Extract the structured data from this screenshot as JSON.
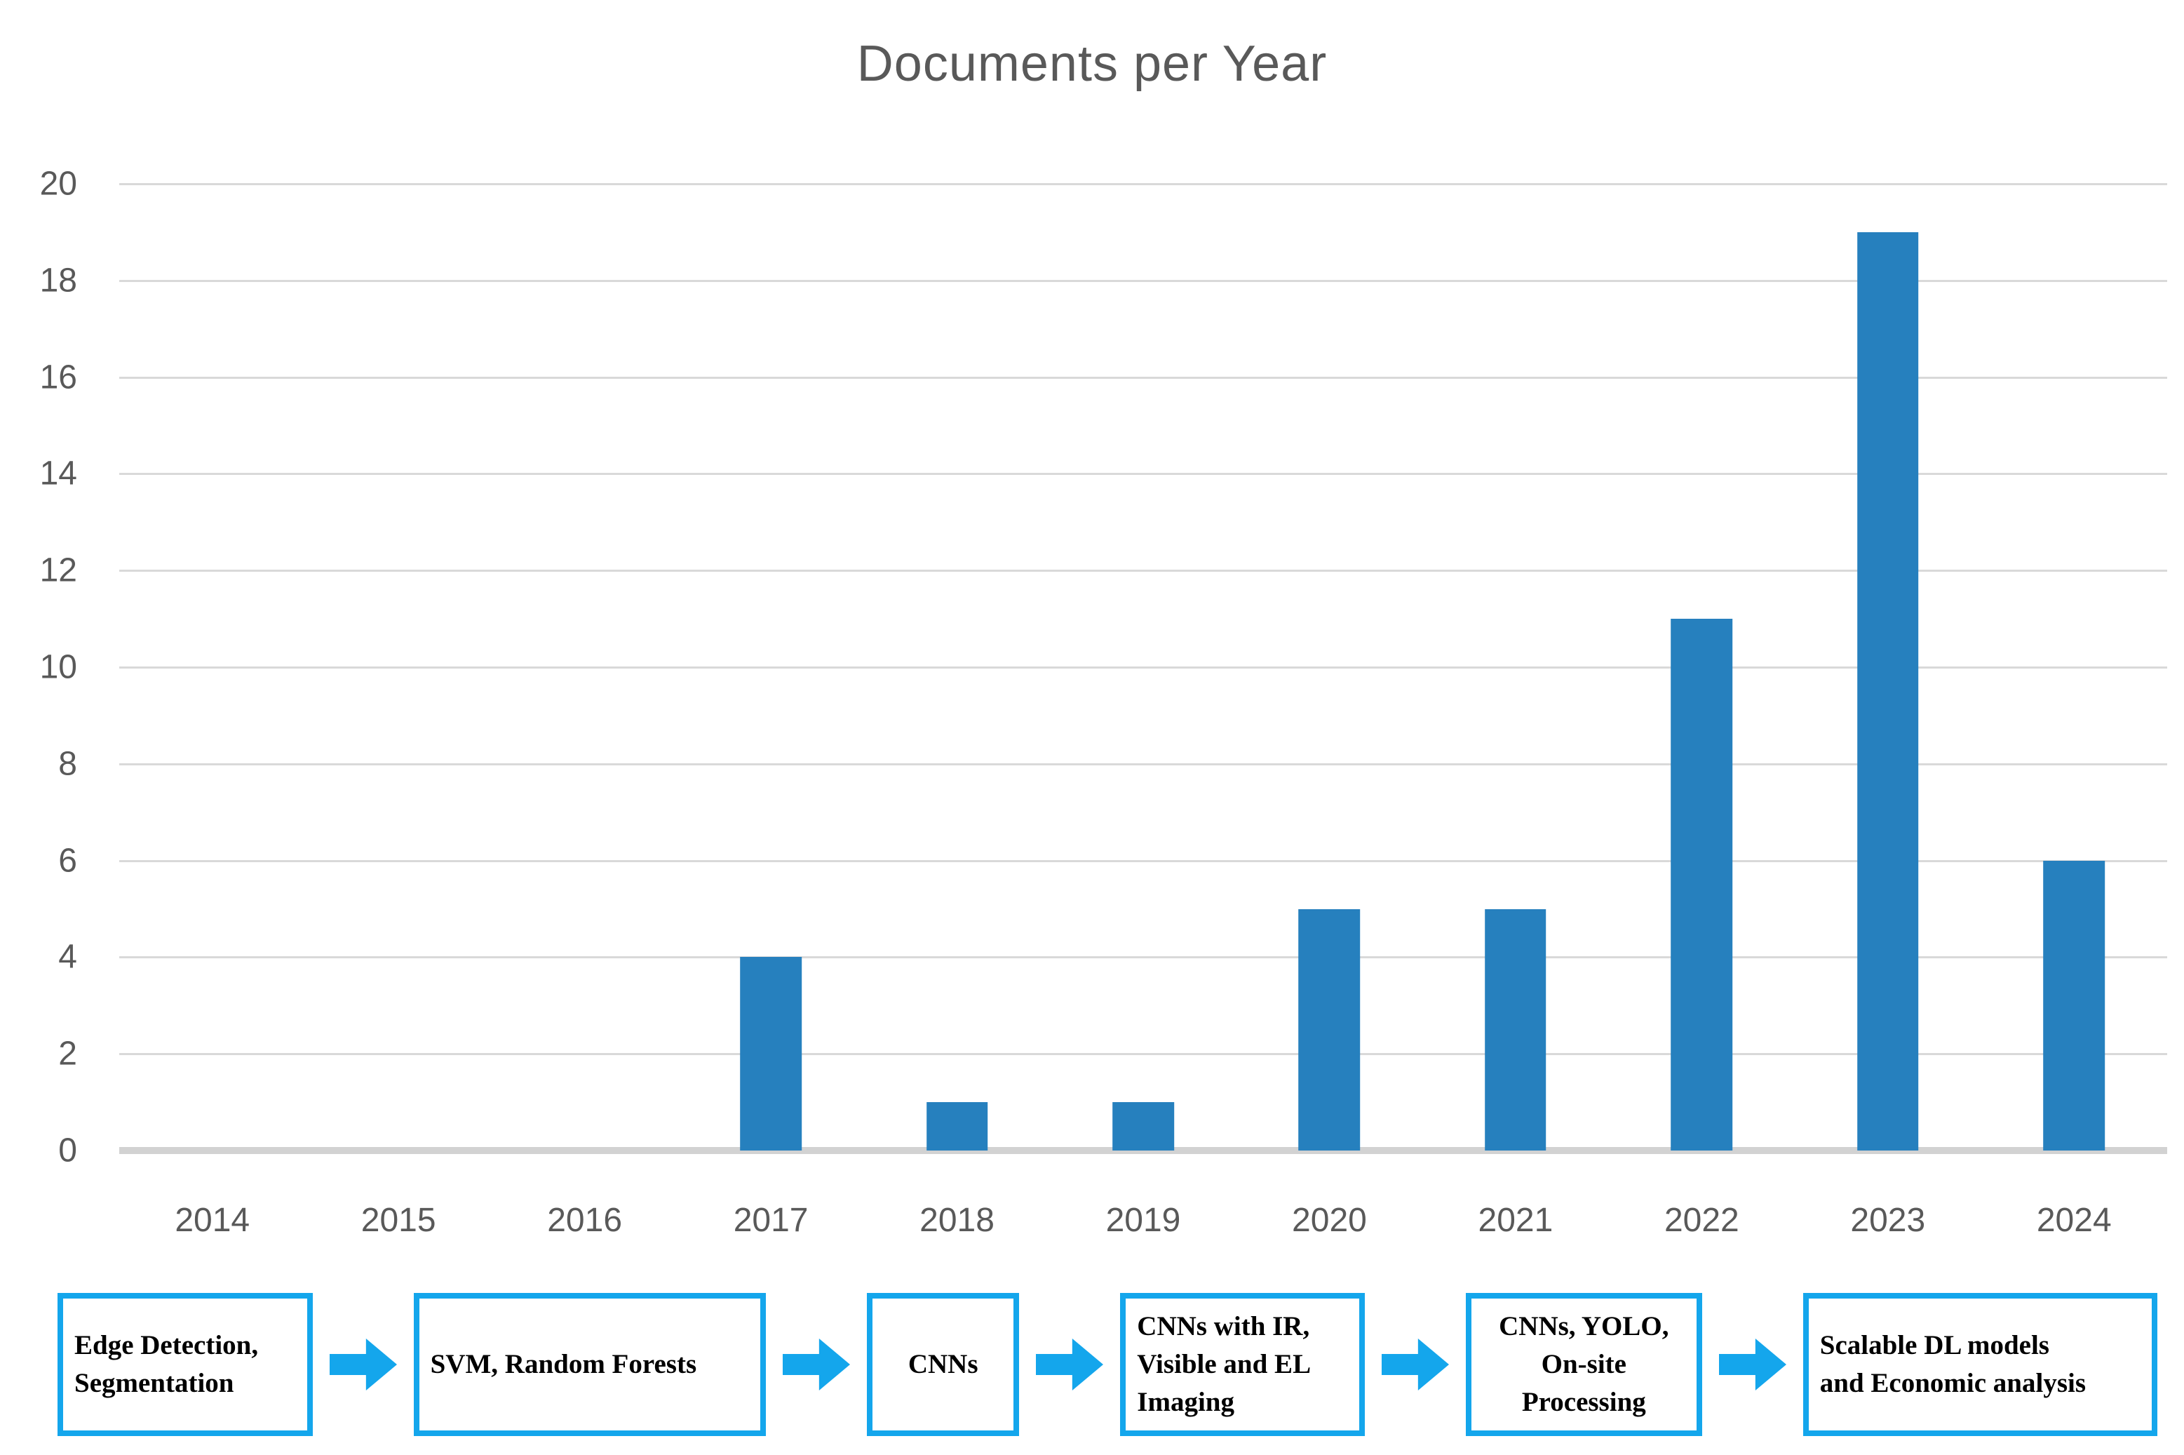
{
  "title": "Documents per Year",
  "chart_data": {
    "type": "bar",
    "title": "Documents per Year",
    "categories": [
      "2014",
      "2015",
      "2016",
      "2017",
      "2018",
      "2019",
      "2020",
      "2021",
      "2022",
      "2023",
      "2024"
    ],
    "values": [
      0,
      0,
      0,
      4,
      1,
      1,
      5,
      5,
      11,
      19,
      6
    ],
    "xlabel": "",
    "ylabel": "",
    "ylim": [
      0,
      20
    ],
    "yticks": [
      "0",
      "2",
      "4",
      "6",
      "8",
      "10",
      "12",
      "14",
      "16",
      "18",
      "20"
    ],
    "ytick_step": 2,
    "grid": "horizontal",
    "legend": "none",
    "bar_color": "#2680BE",
    "gridline_color": "#D9D9D9",
    "baseline_color": "#D2D2D2",
    "axis_label_color": "#595959",
    "title_color": "#595959"
  },
  "timeline": {
    "box_border_color": "#14A6EC",
    "arrow_color": "#14A6EC",
    "text_color": "#000000",
    "boxes": [
      {
        "label": "Edge Detection, Segmentation",
        "lines": [
          "Edge Detection,",
          "Segmentation"
        ],
        "align": "left"
      },
      {
        "label": "SVM, Random Forests",
        "lines": [
          "SVM, Random Forests"
        ],
        "align": "left"
      },
      {
        "label": "CNNs",
        "lines": [
          "CNNs"
        ],
        "align": "center"
      },
      {
        "label": "CNNs with IR, Visible and EL Imaging",
        "lines": [
          "CNNs with IR,",
          "Visible and EL",
          "Imaging"
        ],
        "align": "left"
      },
      {
        "label": "CNNs, YOLO, On-site Processing",
        "lines": [
          "CNNs, YOLO,",
          "On-site",
          "Processing"
        ],
        "align": "center"
      },
      {
        "label": "Scalable DL models and Economic analysis",
        "lines": [
          "Scalable DL models",
          "and Economic analysis"
        ],
        "align": "left"
      }
    ]
  }
}
